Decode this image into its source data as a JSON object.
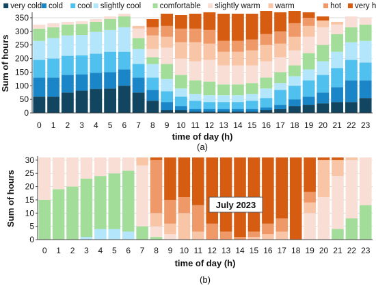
{
  "legend": {
    "items": [
      {
        "key": "very_cold",
        "label": "very cold",
        "color": "#12455f"
      },
      {
        "key": "cold",
        "label": "cold",
        "color": "#1a86c8"
      },
      {
        "key": "cool",
        "label": "cool",
        "color": "#50c1ef"
      },
      {
        "key": "slightly_cool",
        "label": "slightly cool",
        "color": "#b3e6fa"
      },
      {
        "key": "comfortable",
        "label": "comfortable",
        "color": "#a3dd9a"
      },
      {
        "key": "slightly_warm",
        "label": "slightly warm",
        "color": "#f9ded5"
      },
      {
        "key": "warm",
        "label": "warm",
        "color": "#f8c5a6"
      },
      {
        "key": "hot",
        "label": "hot",
        "color": "#ef9868"
      },
      {
        "key": "very_hot",
        "label": "very hot",
        "color": "#d55c10"
      }
    ]
  },
  "chart_data": [
    {
      "type": "bar",
      "stacked": true,
      "panel_label": "(a)",
      "xlabel": "time of day (h)",
      "ylabel": "Sum of hours",
      "ylim": [
        0,
        365
      ],
      "yticks": [
        0,
        50,
        100,
        150,
        200,
        250,
        300,
        350
      ],
      "grid": true,
      "categories": [
        "0",
        "1",
        "2",
        "3",
        "4",
        "5",
        "6",
        "7",
        "8",
        "9",
        "10",
        "11",
        "12",
        "13",
        "14",
        "15",
        "16",
        "17",
        "18",
        "19",
        "20",
        "21",
        "22",
        "23"
      ],
      "series": [
        {
          "name": "very cold",
          "values": [
            60,
            60,
            75,
            82,
            88,
            90,
            100,
            75,
            45,
            10,
            10,
            5,
            5,
            5,
            5,
            5,
            10,
            15,
            25,
            30,
            35,
            40,
            40,
            55
          ]
        },
        {
          "name": "cold",
          "values": [
            70,
            70,
            65,
            60,
            60,
            60,
            60,
            55,
            40,
            30,
            15,
            10,
            10,
            10,
            10,
            10,
            10,
            15,
            25,
            30,
            40,
            55,
            80,
            65
          ]
        },
        {
          "name": "cool",
          "values": [
            65,
            70,
            70,
            70,
            70,
            75,
            65,
            50,
            45,
            40,
            35,
            30,
            25,
            25,
            25,
            30,
            35,
            55,
            50,
            60,
            65,
            70,
            75,
            65
          ]
        },
        {
          "name": "slightly cool",
          "values": [
            70,
            75,
            75,
            75,
            80,
            80,
            90,
            55,
            50,
            45,
            30,
            25,
            25,
            25,
            25,
            25,
            35,
            25,
            35,
            40,
            50,
            60,
            65,
            80
          ]
        },
        {
          "name": "comfortable",
          "values": [
            45,
            40,
            40,
            40,
            37,
            40,
            40,
            40,
            25,
            55,
            50,
            50,
            50,
            40,
            40,
            40,
            40,
            40,
            40,
            60,
            60,
            65,
            55,
            60
          ]
        },
        {
          "name": "slightly warm",
          "values": [
            15,
            15,
            10,
            10,
            10,
            10,
            10,
            35,
            30,
            60,
            60,
            70,
            80,
            70,
            70,
            65,
            60,
            55,
            55,
            60,
            65,
            35,
            40,
            25
          ]
        },
        {
          "name": "warm",
          "values": [
            0,
            0,
            0,
            0,
            0,
            0,
            0,
            10,
            50,
            40,
            60,
            70,
            60,
            50,
            50,
            55,
            60,
            50,
            50,
            40,
            25,
            10,
            0,
            0
          ]
        },
        {
          "name": "hot",
          "values": [
            0,
            0,
            0,
            0,
            0,
            0,
            0,
            0,
            30,
            40,
            50,
            50,
            50,
            40,
            40,
            40,
            40,
            45,
            50,
            30,
            0,
            0,
            0,
            0
          ]
        },
        {
          "name": "very hot",
          "values": [
            0,
            0,
            0,
            0,
            0,
            0,
            0,
            0,
            30,
            45,
            50,
            55,
            65,
            100,
            100,
            95,
            85,
            70,
            45,
            20,
            15,
            0,
            0,
            0
          ]
        }
      ]
    },
    {
      "type": "bar",
      "stacked": true,
      "panel_label": "(b)",
      "annotation": "July 2023",
      "xlabel": "time of day (h)",
      "ylabel": "Sum of hours",
      "ylim": [
        0,
        31
      ],
      "yticks": [
        0,
        5,
        10,
        15,
        20,
        25,
        30
      ],
      "grid": true,
      "categories": [
        "0",
        "1",
        "2",
        "3",
        "4",
        "5",
        "6",
        "7",
        "8",
        "9",
        "10",
        "11",
        "12",
        "13",
        "14",
        "15",
        "16",
        "17",
        "18",
        "19",
        "20",
        "21",
        "22",
        "23"
      ],
      "series": [
        {
          "name": "very cold",
          "values": [
            0,
            0,
            0,
            0,
            0,
            0,
            0,
            0,
            0,
            0,
            0,
            0,
            0,
            0,
            0,
            0,
            0,
            0,
            0,
            0,
            0,
            0,
            0,
            0
          ]
        },
        {
          "name": "cold",
          "values": [
            0,
            0,
            0,
            0,
            0,
            0,
            0,
            0,
            0,
            0,
            0,
            0,
            0,
            0,
            0,
            0,
            0,
            0,
            0,
            0,
            0,
            0,
            0,
            0
          ]
        },
        {
          "name": "cool",
          "values": [
            0,
            0,
            0,
            0,
            0,
            0,
            0,
            0,
            0,
            0,
            0,
            0,
            0,
            0,
            0,
            0,
            0,
            0,
            0,
            0,
            0,
            0,
            0,
            0
          ]
        },
        {
          "name": "slightly cool",
          "values": [
            0,
            0,
            0,
            1,
            4,
            4,
            3,
            0,
            0,
            0,
            0,
            0,
            0,
            0,
            0,
            0,
            0,
            0,
            0,
            0,
            0,
            0,
            0,
            0
          ]
        },
        {
          "name": "comfortable",
          "values": [
            15,
            19,
            20,
            22,
            20,
            21,
            23,
            5,
            1,
            0,
            0,
            0,
            0,
            0,
            0,
            0,
            0,
            0,
            0,
            0,
            0,
            4,
            8,
            13
          ]
        },
        {
          "name": "slightly warm",
          "values": [
            16,
            12,
            11,
            8,
            7,
            6,
            5,
            23,
            4,
            2,
            0,
            0,
            0,
            0,
            0,
            0,
            0,
            0,
            0,
            10,
            16,
            20,
            22,
            18
          ]
        },
        {
          "name": "warm",
          "values": [
            0,
            0,
            0,
            0,
            0,
            0,
            0,
            3,
            5,
            4,
            10,
            3,
            0,
            0,
            0,
            1,
            2,
            3,
            0,
            4,
            14,
            6,
            1,
            0
          ]
        },
        {
          "name": "hot",
          "values": [
            0,
            0,
            0,
            0,
            0,
            0,
            0,
            0,
            20,
            9,
            6,
            10,
            6,
            3,
            1,
            2,
            4,
            5,
            0,
            4,
            0,
            0,
            0,
            0
          ]
        },
        {
          "name": "very hot",
          "values": [
            0,
            0,
            0,
            0,
            0,
            0,
            0,
            0,
            1,
            16,
            15,
            18,
            25,
            28,
            30,
            28,
            25,
            23,
            31,
            13,
            1,
            1,
            0,
            0
          ]
        }
      ]
    }
  ]
}
